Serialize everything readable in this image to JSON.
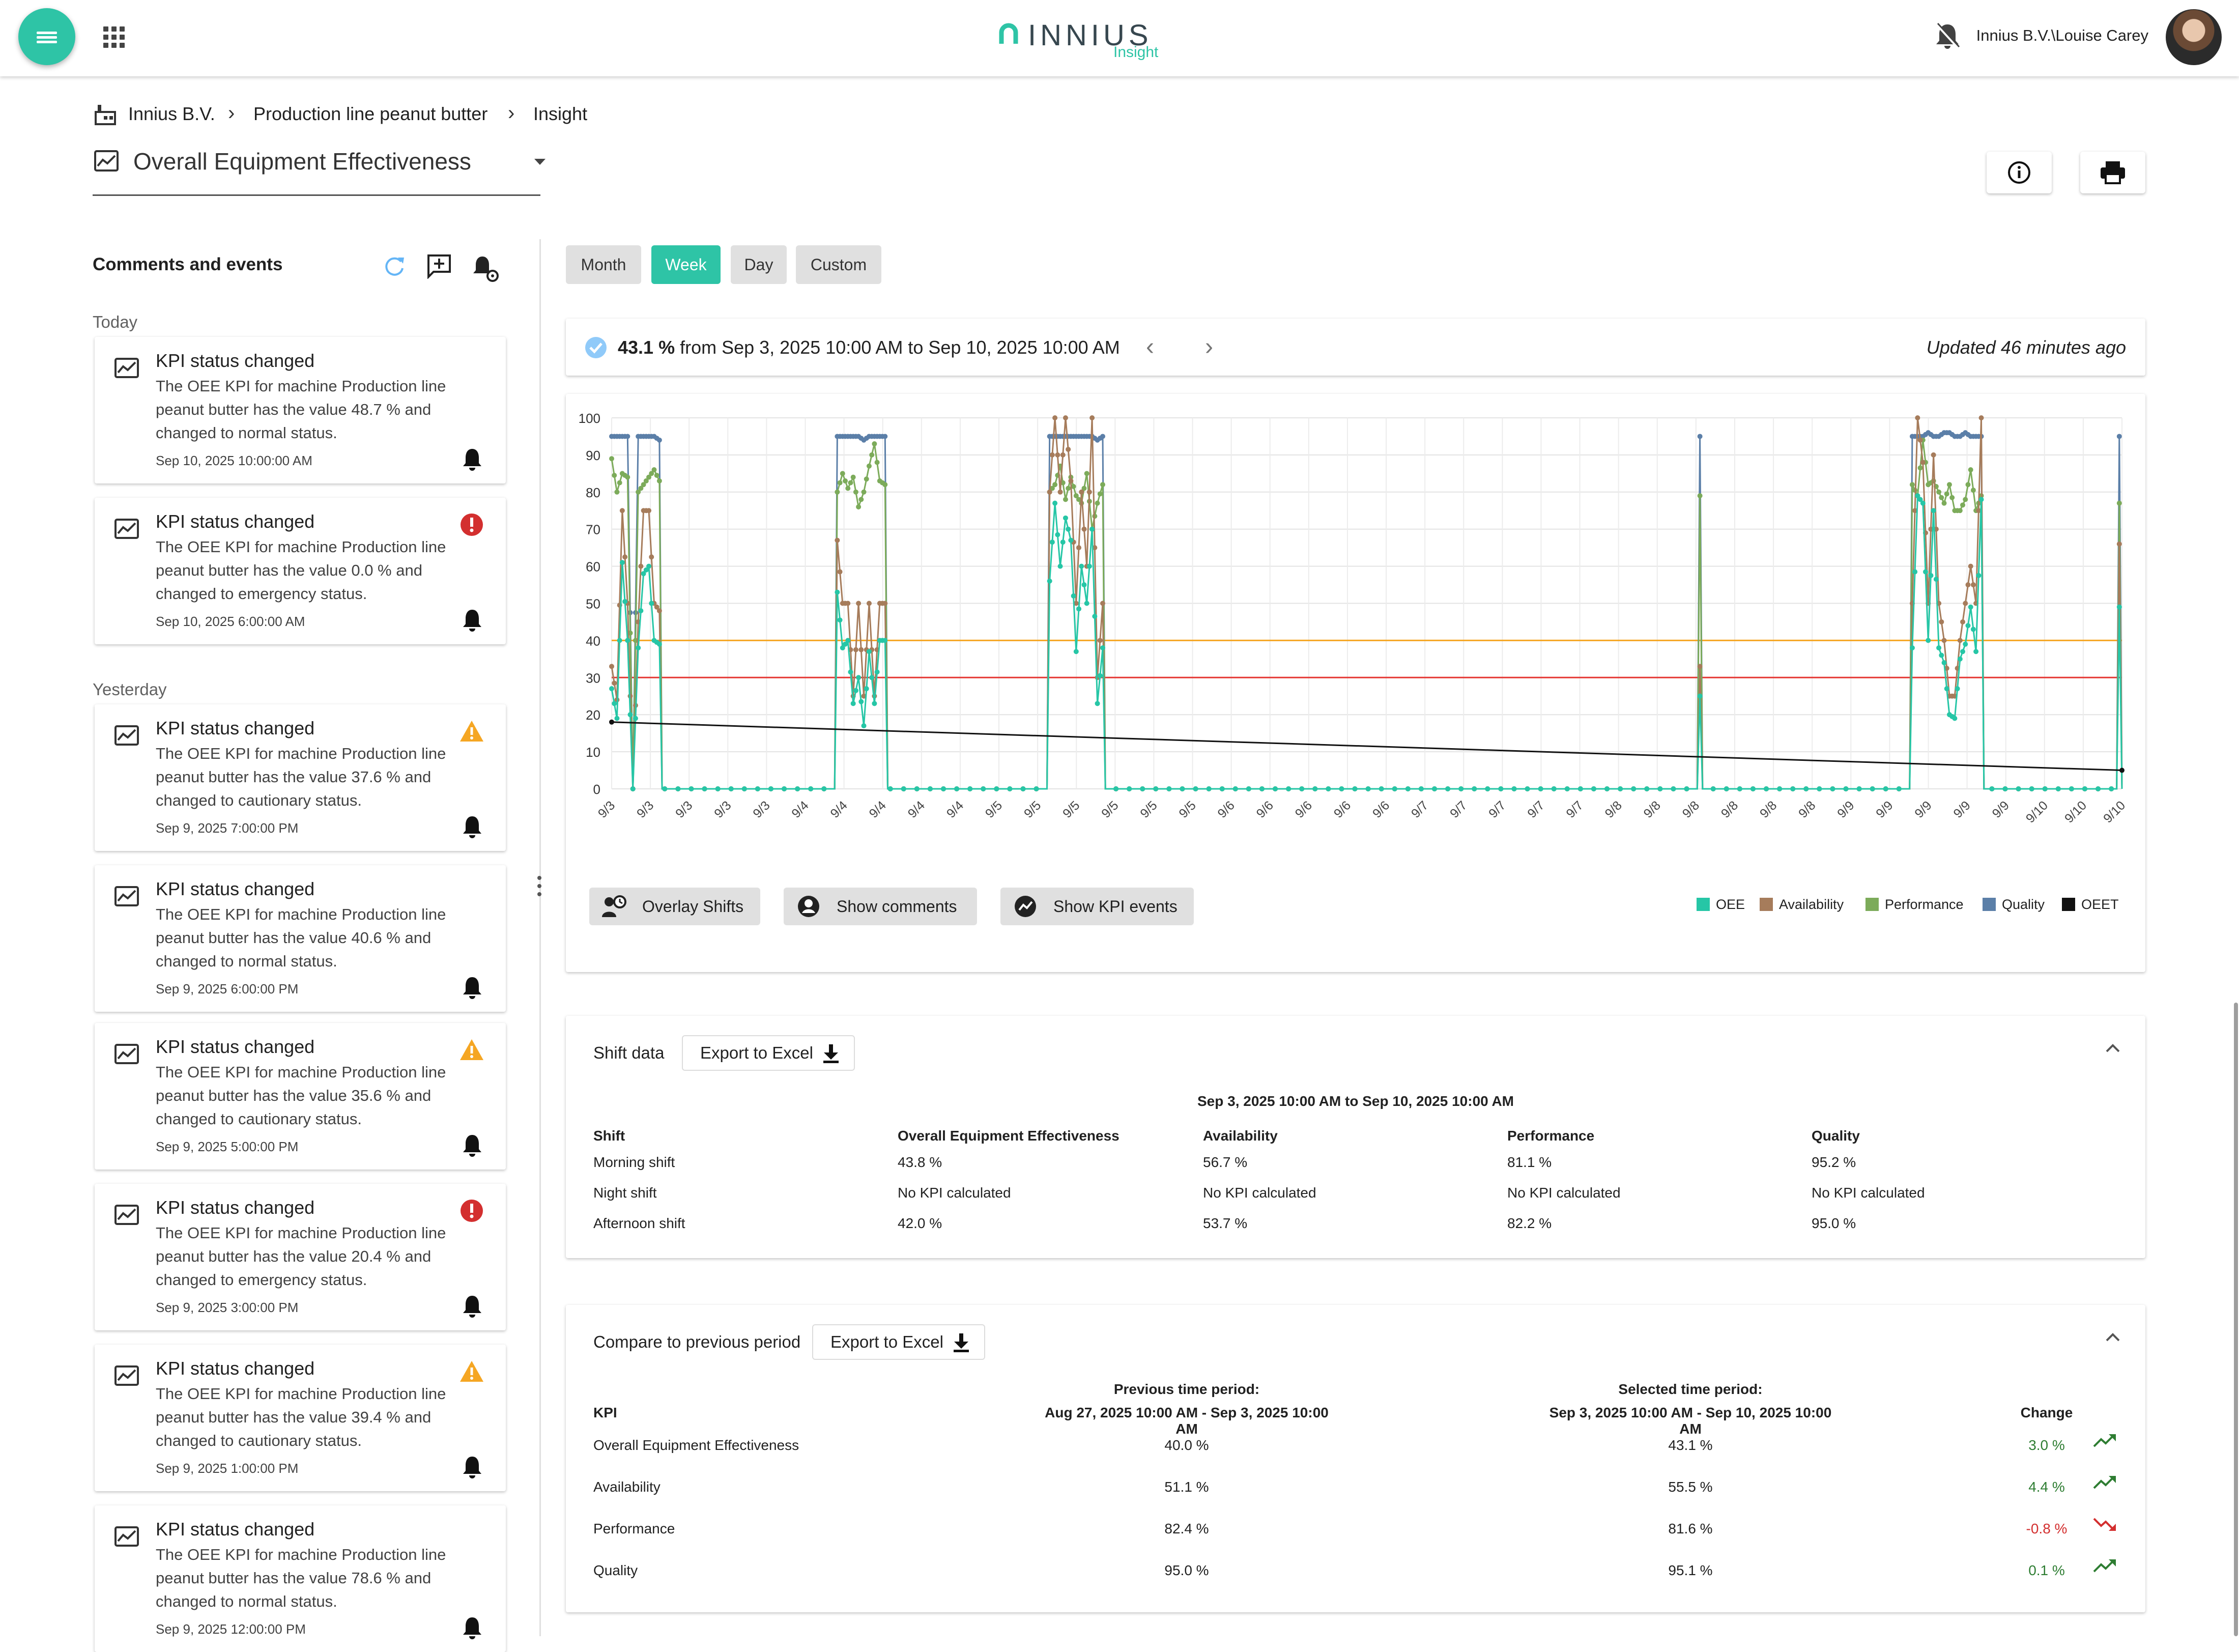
{
  "header": {
    "brand": "INNIUS",
    "brand_sub": "Insight",
    "user": "Innius B.V.\\Louise Carey",
    "icons": [
      "menu-icon",
      "apps-grid-icon",
      "notifications-off-icon",
      "avatar"
    ]
  },
  "breadcrumb": [
    "Innius B.V.",
    "Production line peanut butter",
    "Insight"
  ],
  "kpi_selector": {
    "value": "Overall Equipment Effectiveness"
  },
  "sidebar": {
    "title": "Comments and events",
    "groups": [
      {
        "label": "Today",
        "items": [
          {
            "title": "KPI status changed",
            "text": "The OEE KPI for machine Production line peanut butter has the value 48.7 % and changed to normal status.",
            "date": "Sep 10, 2025 10:00:00 AM",
            "status": "normal"
          },
          {
            "title": "KPI status changed",
            "text": "The OEE KPI for machine Production line peanut butter has the value 0.0 % and changed to emergency status.",
            "date": "Sep 10, 2025 6:00:00 AM",
            "status": "emergency"
          }
        ]
      },
      {
        "label": "Yesterday",
        "items": [
          {
            "title": "KPI status changed",
            "text": "The OEE KPI for machine Production line peanut butter has the value 37.6 % and changed to cautionary status.",
            "date": "Sep 9, 2025 7:00:00 PM",
            "status": "cautionary"
          },
          {
            "title": "KPI status changed",
            "text": "The OEE KPI for machine Production line peanut butter has the value 40.6 % and changed to normal status.",
            "date": "Sep 9, 2025 6:00:00 PM",
            "status": "normal"
          },
          {
            "title": "KPI status changed",
            "text": "The OEE KPI for machine Production line peanut butter has the value 35.6 % and changed to cautionary status.",
            "date": "Sep 9, 2025 5:00:00 PM",
            "status": "cautionary"
          },
          {
            "title": "KPI status changed",
            "text": "The OEE KPI for machine Production line peanut butter has the value 20.4 % and changed to emergency status.",
            "date": "Sep 9, 2025 3:00:00 PM",
            "status": "emergency"
          },
          {
            "title": "KPI status changed",
            "text": "The OEE KPI for machine Production line peanut butter has the value 39.4 % and changed to cautionary status.",
            "date": "Sep 9, 2025 1:00:00 PM",
            "status": "cautionary"
          },
          {
            "title": "KPI status changed",
            "text": "The OEE KPI for machine Production line peanut butter has the value 78.6 % and changed to normal status.",
            "date": "Sep 9, 2025 12:00:00 PM",
            "status": "normal"
          }
        ]
      }
    ]
  },
  "period_tabs": {
    "items": [
      "Month",
      "Week",
      "Day",
      "Custom"
    ],
    "active": "Week"
  },
  "summary": {
    "value": "43.1 %",
    "range": "from Sep 3, 2025 10:00 AM to Sep 10, 2025 10:00 AM",
    "updated": "Updated 46 minutes ago"
  },
  "chart_buttons": [
    "Overlay Shifts",
    "Show comments",
    "Show KPI events"
  ],
  "colors": {
    "accent": "#2ec4a6",
    "OEE": "#26c6a6",
    "Availability": "#a67c5b",
    "Performance": "#7cab5a",
    "Quality": "#5b7fa8",
    "OEET": "#111111",
    "cautionary_line": "#f5a623",
    "emergency_line": "#e53935",
    "emergency": "#d32f2f",
    "cautionary": "#f5a623"
  },
  "chart_data": {
    "type": "line",
    "ylim": [
      0,
      100
    ],
    "y_ticks": [
      0,
      10,
      20,
      30,
      40,
      50,
      60,
      70,
      80,
      90,
      100
    ],
    "x_tick_labels": [
      "9/3",
      "9/3",
      "9/3",
      "9/3",
      "9/3",
      "9/4",
      "9/4",
      "9/4",
      "9/4",
      "9/4",
      "9/5",
      "9/5",
      "9/5",
      "9/5",
      "9/5",
      "9/5",
      "9/6",
      "9/6",
      "9/6",
      "9/6",
      "9/6",
      "9/7",
      "9/7",
      "9/7",
      "9/7",
      "9/7",
      "9/8",
      "9/8",
      "9/8",
      "9/8",
      "9/8",
      "9/8",
      "9/9",
      "9/9",
      "9/9",
      "9/9",
      "9/9",
      "9/10",
      "9/10",
      "9/10"
    ],
    "grid": true,
    "legend_position": "bottom-right",
    "thresholds": [
      {
        "name": "cautionary",
        "value": 40
      },
      {
        "name": "emergency",
        "value": 30
      }
    ],
    "bursts": [
      {
        "start": 0,
        "OEE": [
          27,
          19,
          61,
          40,
          0,
          38,
          58,
          60,
          40,
          39
        ],
        "Availability": [
          33,
          24,
          75,
          50,
          0,
          45,
          75,
          75,
          50,
          48
        ],
        "Performance": [
          89,
          80,
          85,
          84,
          0,
          80,
          82,
          84,
          86,
          83
        ],
        "Quality": [
          95,
          95,
          95,
          95,
          0,
          95,
          95,
          95,
          95,
          94
        ]
      },
      {
        "start": 85,
        "OEE": [
          53,
          38,
          40,
          23,
          30,
          17,
          37,
          23,
          40,
          40
        ],
        "Availability": [
          67,
          50,
          50,
          25,
          50,
          25,
          50,
          25,
          50,
          50
        ],
        "Performance": [
          80,
          85,
          81,
          84,
          76,
          80,
          87,
          93,
          83,
          82
        ],
        "Quality": [
          95,
          95,
          95,
          95,
          95,
          94,
          95,
          95,
          95,
          95
        ]
      },
      {
        "start": 165,
        "OEE": [
          56,
          77,
          60,
          73,
          67,
          37,
          60,
          50,
          70,
          23,
          38
        ],
        "Availability": [
          80,
          100,
          80,
          100,
          83,
          50,
          80,
          60,
          100,
          30,
          50
        ],
        "Performance": [
          80,
          82,
          87,
          78,
          84,
          79,
          77,
          85,
          70,
          77,
          82
        ],
        "Quality": [
          95,
          95,
          95,
          95,
          95,
          95,
          95,
          95,
          95,
          94,
          95
        ]
      },
      {
        "start": 410,
        "OEE": [
          25
        ],
        "Availability": [
          33
        ],
        "Performance": [
          79
        ],
        "Quality": [
          95
        ]
      },
      {
        "start": 490,
        "OEE": [
          38,
          79,
          77,
          40,
          75,
          38,
          34,
          20,
          19,
          35,
          39,
          49,
          37,
          78
        ],
        "Availability": [
          50,
          100,
          88,
          50,
          90,
          50,
          40,
          25,
          25,
          40,
          50,
          60,
          50,
          100
        ],
        "Performance": [
          82,
          79,
          94,
          82,
          83,
          80,
          77,
          82,
          75,
          75,
          78,
          86,
          75,
          79
        ],
        "Quality": [
          95,
          95,
          95,
          96,
          95,
          95,
          96,
          96,
          95,
          95,
          96,
          95,
          95,
          95
        ]
      },
      {
        "start": 568,
        "OEE": [
          49
        ],
        "Availability": [
          66
        ],
        "Performance": [
          77
        ],
        "Quality": [
          95
        ]
      }
    ],
    "samples": 570,
    "series": [
      {
        "name": "OEE"
      },
      {
        "name": "Availability"
      },
      {
        "name": "Performance"
      },
      {
        "name": "Quality"
      },
      {
        "name": "OEET",
        "trend": [
          18,
          5
        ]
      }
    ]
  },
  "shift_data": {
    "title": "Shift data",
    "export_label": "Export to Excel",
    "period": "Sep 3, 2025 10:00 AM to Sep 10, 2025 10:00 AM",
    "columns": [
      "Shift",
      "Overall Equipment Effectiveness",
      "Availability",
      "Performance",
      "Quality"
    ],
    "rows": [
      [
        "Morning shift",
        "43.8 %",
        "56.7 %",
        "81.1 %",
        "95.2 %"
      ],
      [
        "Night shift",
        "No KPI calculated",
        "No KPI calculated",
        "No KPI calculated",
        "No KPI calculated"
      ],
      [
        "Afternoon shift",
        "42.0 %",
        "53.7 %",
        "82.2 %",
        "95.0 %"
      ]
    ]
  },
  "compare": {
    "title": "Compare to previous period",
    "export_label": "Export to Excel",
    "prev_header": "Previous time period:",
    "prev_range": "Aug 27, 2025 10:00 AM - Sep 3, 2025 10:00 AM",
    "sel_header": "Selected time period:",
    "sel_range": "Sep 3, 2025 10:00 AM - Sep 10, 2025 10:00 AM",
    "kpi_label": "KPI",
    "change_label": "Change",
    "rows": [
      {
        "kpi": "Overall Equipment Effectiveness",
        "prev": "40.0 %",
        "sel": "43.1 %",
        "change": "3.0 %",
        "trend": "up"
      },
      {
        "kpi": "Availability",
        "prev": "51.1 %",
        "sel": "55.5 %",
        "change": "4.4 %",
        "trend": "up"
      },
      {
        "kpi": "Performance",
        "prev": "82.4 %",
        "sel": "81.6 %",
        "change": "-0.8 %",
        "trend": "down"
      },
      {
        "kpi": "Quality",
        "prev": "95.0 %",
        "sel": "95.1 %",
        "change": "0.1 %",
        "trend": "up"
      }
    ]
  }
}
